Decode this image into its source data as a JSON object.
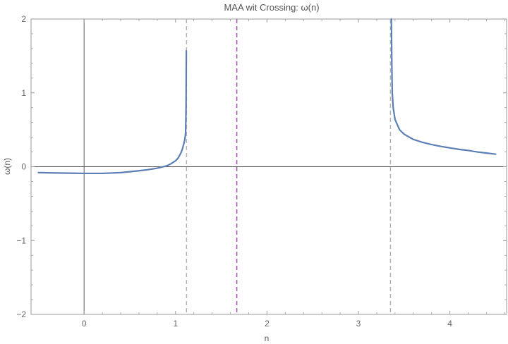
{
  "chart_data": {
    "type": "line",
    "title": "MAA wit Crossing: ω(n)",
    "xlabel": "n",
    "ylabel": "ω(n)",
    "xlim": [
      -0.58,
      4.62
    ],
    "ylim": [
      -2,
      2
    ],
    "x_ticks": [
      0,
      1,
      2,
      3,
      4
    ],
    "y_ticks": [
      -2,
      -1,
      0,
      1,
      2
    ],
    "x_tick_labels": [
      "0",
      "1",
      "2",
      "3",
      "4"
    ],
    "y_tick_labels": [
      "−2",
      "−1",
      "0",
      "1",
      "2"
    ],
    "grid": false,
    "frame": true,
    "colors": {
      "curve": "#5b7fb5",
      "asymptote_gray": "#b3b3b3",
      "asymptote_magenta": "#b24bc3",
      "axis": "#555555",
      "frame": "#999999"
    },
    "vertical_lines": [
      {
        "x": 1.12,
        "style": "dashed",
        "color": "#b3b3b3"
      },
      {
        "x": 1.67,
        "style": "dashed",
        "color": "#b24bc3"
      },
      {
        "x": 3.35,
        "style": "dashed",
        "color": "#b3b3b3"
      }
    ],
    "series": [
      {
        "segment": "left",
        "x": [
          -0.5,
          -0.3,
          -0.1,
          0.0,
          0.2,
          0.4,
          0.6,
          0.7,
          0.8,
          0.85,
          0.9,
          0.95,
          1.0,
          1.03,
          1.06,
          1.08,
          1.1,
          1.11,
          1.115,
          1.118
        ],
        "y": [
          -0.08,
          -0.085,
          -0.088,
          -0.09,
          -0.09,
          -0.08,
          -0.055,
          -0.04,
          -0.02,
          -0.005,
          0.01,
          0.04,
          0.08,
          0.12,
          0.19,
          0.26,
          0.36,
          0.45,
          0.8,
          1.57
        ]
      },
      {
        "segment": "right",
        "x": [
          3.36,
          3.365,
          3.37,
          3.38,
          3.4,
          3.45,
          3.5,
          3.6,
          3.7,
          3.8,
          3.9,
          4.0,
          4.1,
          4.2,
          4.3,
          4.4,
          4.5
        ],
        "y": [
          2.0,
          1.4,
          1.0,
          0.8,
          0.64,
          0.5,
          0.44,
          0.37,
          0.33,
          0.3,
          0.275,
          0.255,
          0.235,
          0.22,
          0.2,
          0.185,
          0.17
        ]
      }
    ]
  }
}
